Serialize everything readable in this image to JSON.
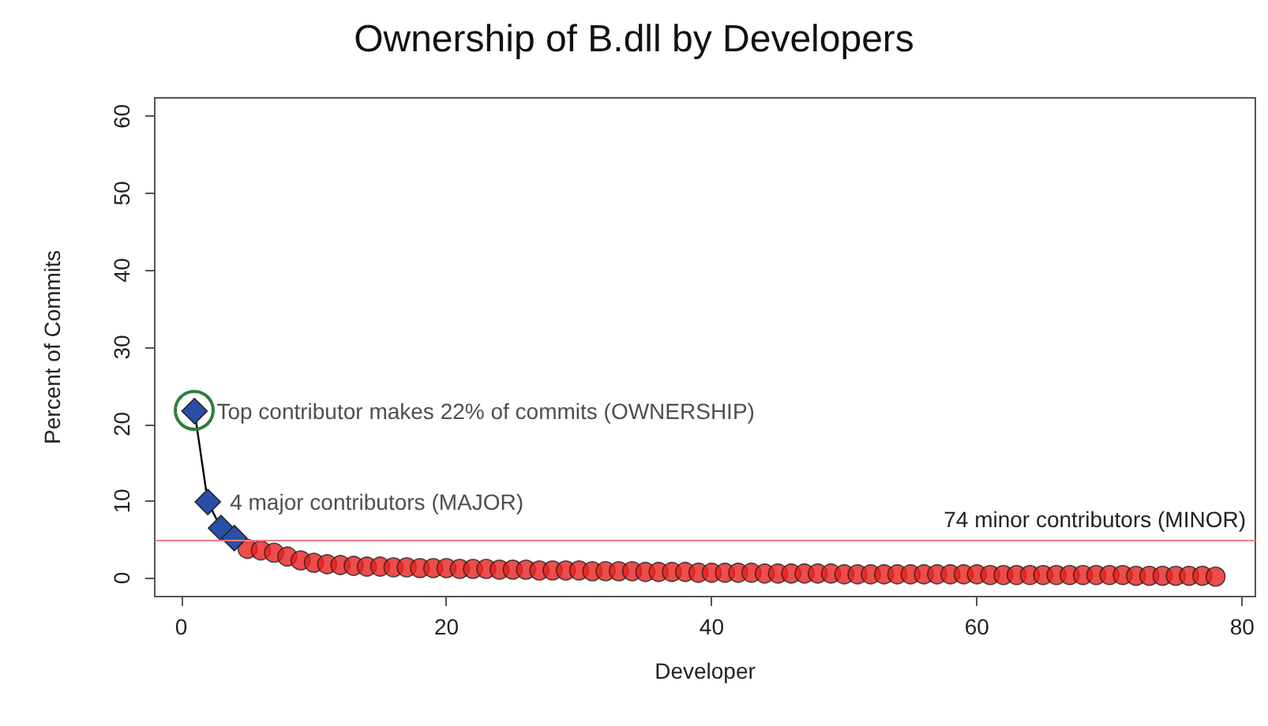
{
  "chart_data": {
    "type": "scatter",
    "title": "Ownership of B.dll by Developers",
    "xlabel": "Developer",
    "ylabel": "Percent of Commits",
    "xlim": [
      -2,
      81
    ],
    "xticks": [
      0,
      20,
      40,
      60,
      80
    ],
    "ylim": [
      -2.4,
      62.4
    ],
    "yticks": [
      0,
      10,
      20,
      30,
      40,
      50,
      60
    ],
    "grid": false,
    "series": [
      {
        "type": "line",
        "marker": "diamond",
        "color": "#2a4fa8",
        "x": [
          1,
          2,
          3,
          4
        ],
        "values": [
          21.7,
          9.9,
          6.5,
          5.2
        ]
      },
      {
        "marker": "circle",
        "color": "#e8201e",
        "x": [
          5,
          6,
          7,
          8,
          9,
          10,
          11,
          12,
          13,
          14,
          15,
          16,
          17,
          18,
          19,
          20,
          21,
          22,
          23,
          24,
          25,
          26,
          27,
          28,
          29,
          30,
          31,
          32,
          33,
          34,
          35,
          36,
          37,
          38,
          39,
          40,
          41,
          42,
          43,
          44,
          45,
          46,
          47,
          48,
          49,
          50,
          51,
          52,
          53,
          54,
          55,
          56,
          57,
          58,
          59,
          60,
          61,
          62,
          63,
          64,
          65,
          66,
          67,
          68,
          69,
          70,
          71,
          72,
          73,
          74,
          75,
          76,
          77,
          78
        ],
        "values": [
          3.8,
          3.6,
          3.3,
          2.8,
          2.3,
          2.0,
          1.8,
          1.7,
          1.6,
          1.5,
          1.5,
          1.4,
          1.4,
          1.3,
          1.3,
          1.3,
          1.2,
          1.2,
          1.2,
          1.1,
          1.1,
          1.1,
          1.0,
          1.0,
          1.0,
          1.0,
          0.9,
          0.9,
          0.9,
          0.9,
          0.8,
          0.8,
          0.8,
          0.8,
          0.7,
          0.7,
          0.7,
          0.7,
          0.7,
          0.6,
          0.6,
          0.6,
          0.6,
          0.6,
          0.6,
          0.5,
          0.5,
          0.5,
          0.5,
          0.5,
          0.5,
          0.5,
          0.5,
          0.5,
          0.5,
          0.5,
          0.4,
          0.4,
          0.4,
          0.4,
          0.4,
          0.4,
          0.4,
          0.4,
          0.4,
          0.4,
          0.4,
          0.3,
          0.3,
          0.3,
          0.3,
          0.3,
          0.3,
          0.2
        ]
      }
    ],
    "ref_lines": [
      {
        "axis": "y",
        "value": 5,
        "label": "74 minor contributors (MINOR)",
        "color": "#f08080"
      }
    ],
    "annotations": [
      {
        "text": "Top contributor makes 22% of commits (OWNERSHIP)",
        "x": 1,
        "y": 21.7
      },
      {
        "text": "4 major contributors (MAJOR)",
        "x": 2,
        "y": 9.9
      }
    ]
  }
}
